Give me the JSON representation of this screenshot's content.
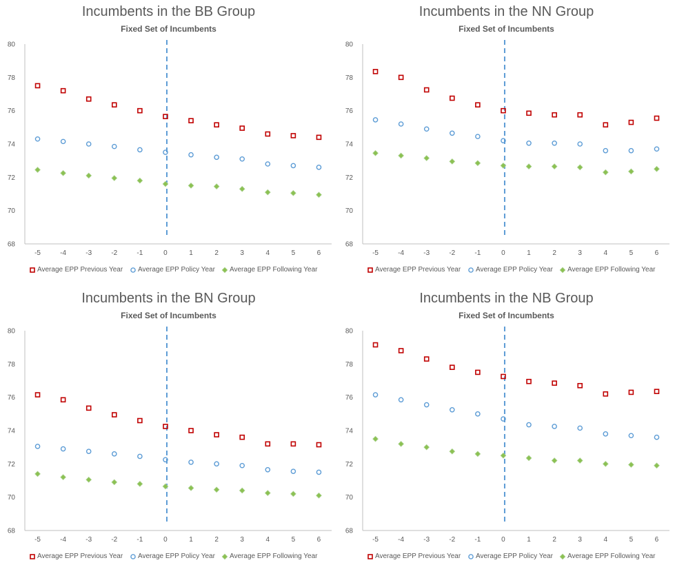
{
  "legend": {
    "prev": "Average EPP Previous Year",
    "policy": "Average EPP Policy Year",
    "following": "Average EPP Following Year"
  },
  "colors": {
    "prev": "#C00000",
    "policy": "#5B9BD5",
    "following": "#8CC152",
    "divider": "#5B9BD5",
    "axis": "#BFBFBF",
    "text": "#595959"
  },
  "chart_data": [
    {
      "type": "scatter",
      "title": "Incumbents in the BB Group",
      "subtitle": "Fixed Set of Incumbents",
      "x": [
        -5,
        -4,
        -3,
        -2,
        -1,
        0,
        1,
        2,
        3,
        4,
        5,
        6
      ],
      "ylim": [
        68,
        80
      ],
      "yticks": [
        68,
        70,
        72,
        74,
        76,
        78,
        80
      ],
      "divider_x": 0,
      "series": [
        {
          "key": "prev",
          "values": [
            77.5,
            77.2,
            76.7,
            76.35,
            76.0,
            75.65,
            75.4,
            75.15,
            74.95,
            74.6,
            74.5,
            74.4
          ]
        },
        {
          "key": "policy",
          "values": [
            74.3,
            74.15,
            74.0,
            73.85,
            73.65,
            73.5,
            73.35,
            73.2,
            73.1,
            72.8,
            72.7,
            72.6
          ]
        },
        {
          "key": "following",
          "values": [
            72.45,
            72.25,
            72.1,
            71.95,
            71.8,
            71.6,
            71.5,
            71.45,
            71.3,
            71.1,
            71.05,
            70.95
          ]
        }
      ]
    },
    {
      "type": "scatter",
      "title": "Incumbents in the NN Group",
      "subtitle": "Fixed Set of Incumbents",
      "x": [
        -5,
        -4,
        -3,
        -2,
        -1,
        0,
        1,
        2,
        3,
        4,
        5,
        6
      ],
      "ylim": [
        68,
        80
      ],
      "yticks": [
        68,
        70,
        72,
        74,
        76,
        78,
        80
      ],
      "divider_x": 0,
      "series": [
        {
          "key": "prev",
          "values": [
            78.35,
            78.0,
            77.25,
            76.75,
            76.35,
            76.0,
            75.85,
            75.75,
            75.75,
            75.15,
            75.3,
            75.55
          ]
        },
        {
          "key": "policy",
          "values": [
            75.45,
            75.2,
            74.9,
            74.65,
            74.45,
            74.2,
            74.05,
            74.05,
            74.0,
            73.6,
            73.6,
            73.7
          ]
        },
        {
          "key": "following",
          "values": [
            73.45,
            73.3,
            73.15,
            72.95,
            72.85,
            72.7,
            72.65,
            72.65,
            72.6,
            72.3,
            72.35,
            72.5
          ]
        }
      ]
    },
    {
      "type": "scatter",
      "title": "Incumbents in the BN Group",
      "subtitle": "Fixed Set of Incumbents",
      "x": [
        -5,
        -4,
        -3,
        -2,
        -1,
        0,
        1,
        2,
        3,
        4,
        5,
        6
      ],
      "ylim": [
        68,
        80
      ],
      "yticks": [
        68,
        70,
        72,
        74,
        76,
        78,
        80
      ],
      "divider_x": 0,
      "series": [
        {
          "key": "prev",
          "values": [
            76.15,
            75.85,
            75.35,
            74.95,
            74.6,
            74.25,
            74.0,
            73.75,
            73.6,
            73.2,
            73.2,
            73.15
          ]
        },
        {
          "key": "policy",
          "values": [
            73.05,
            72.9,
            72.75,
            72.6,
            72.45,
            72.25,
            72.1,
            72.0,
            71.9,
            71.65,
            71.55,
            71.5
          ]
        },
        {
          "key": "following",
          "values": [
            71.4,
            71.2,
            71.05,
            70.9,
            70.8,
            70.65,
            70.55,
            70.45,
            70.4,
            70.25,
            70.2,
            70.1
          ]
        }
      ]
    },
    {
      "type": "scatter",
      "title": "Incumbents in the NB Group",
      "subtitle": "Fixed Set of Incumbents",
      "x": [
        -5,
        -4,
        -3,
        -2,
        -1,
        0,
        1,
        2,
        3,
        4,
        5,
        6
      ],
      "ylim": [
        68,
        80
      ],
      "yticks": [
        68,
        70,
        72,
        74,
        76,
        78,
        80
      ],
      "divider_x": 0,
      "series": [
        {
          "key": "prev",
          "values": [
            79.15,
            78.8,
            78.3,
            77.8,
            77.5,
            77.25,
            76.95,
            76.85,
            76.7,
            76.2,
            76.3,
            76.35
          ]
        },
        {
          "key": "policy",
          "values": [
            76.15,
            75.85,
            75.55,
            75.25,
            75.0,
            74.7,
            74.35,
            74.25,
            74.15,
            73.8,
            73.7,
            73.6
          ]
        },
        {
          "key": "following",
          "values": [
            73.5,
            73.2,
            73.0,
            72.75,
            72.6,
            72.5,
            72.35,
            72.2,
            72.2,
            72.0,
            71.95,
            71.9
          ]
        }
      ]
    }
  ]
}
